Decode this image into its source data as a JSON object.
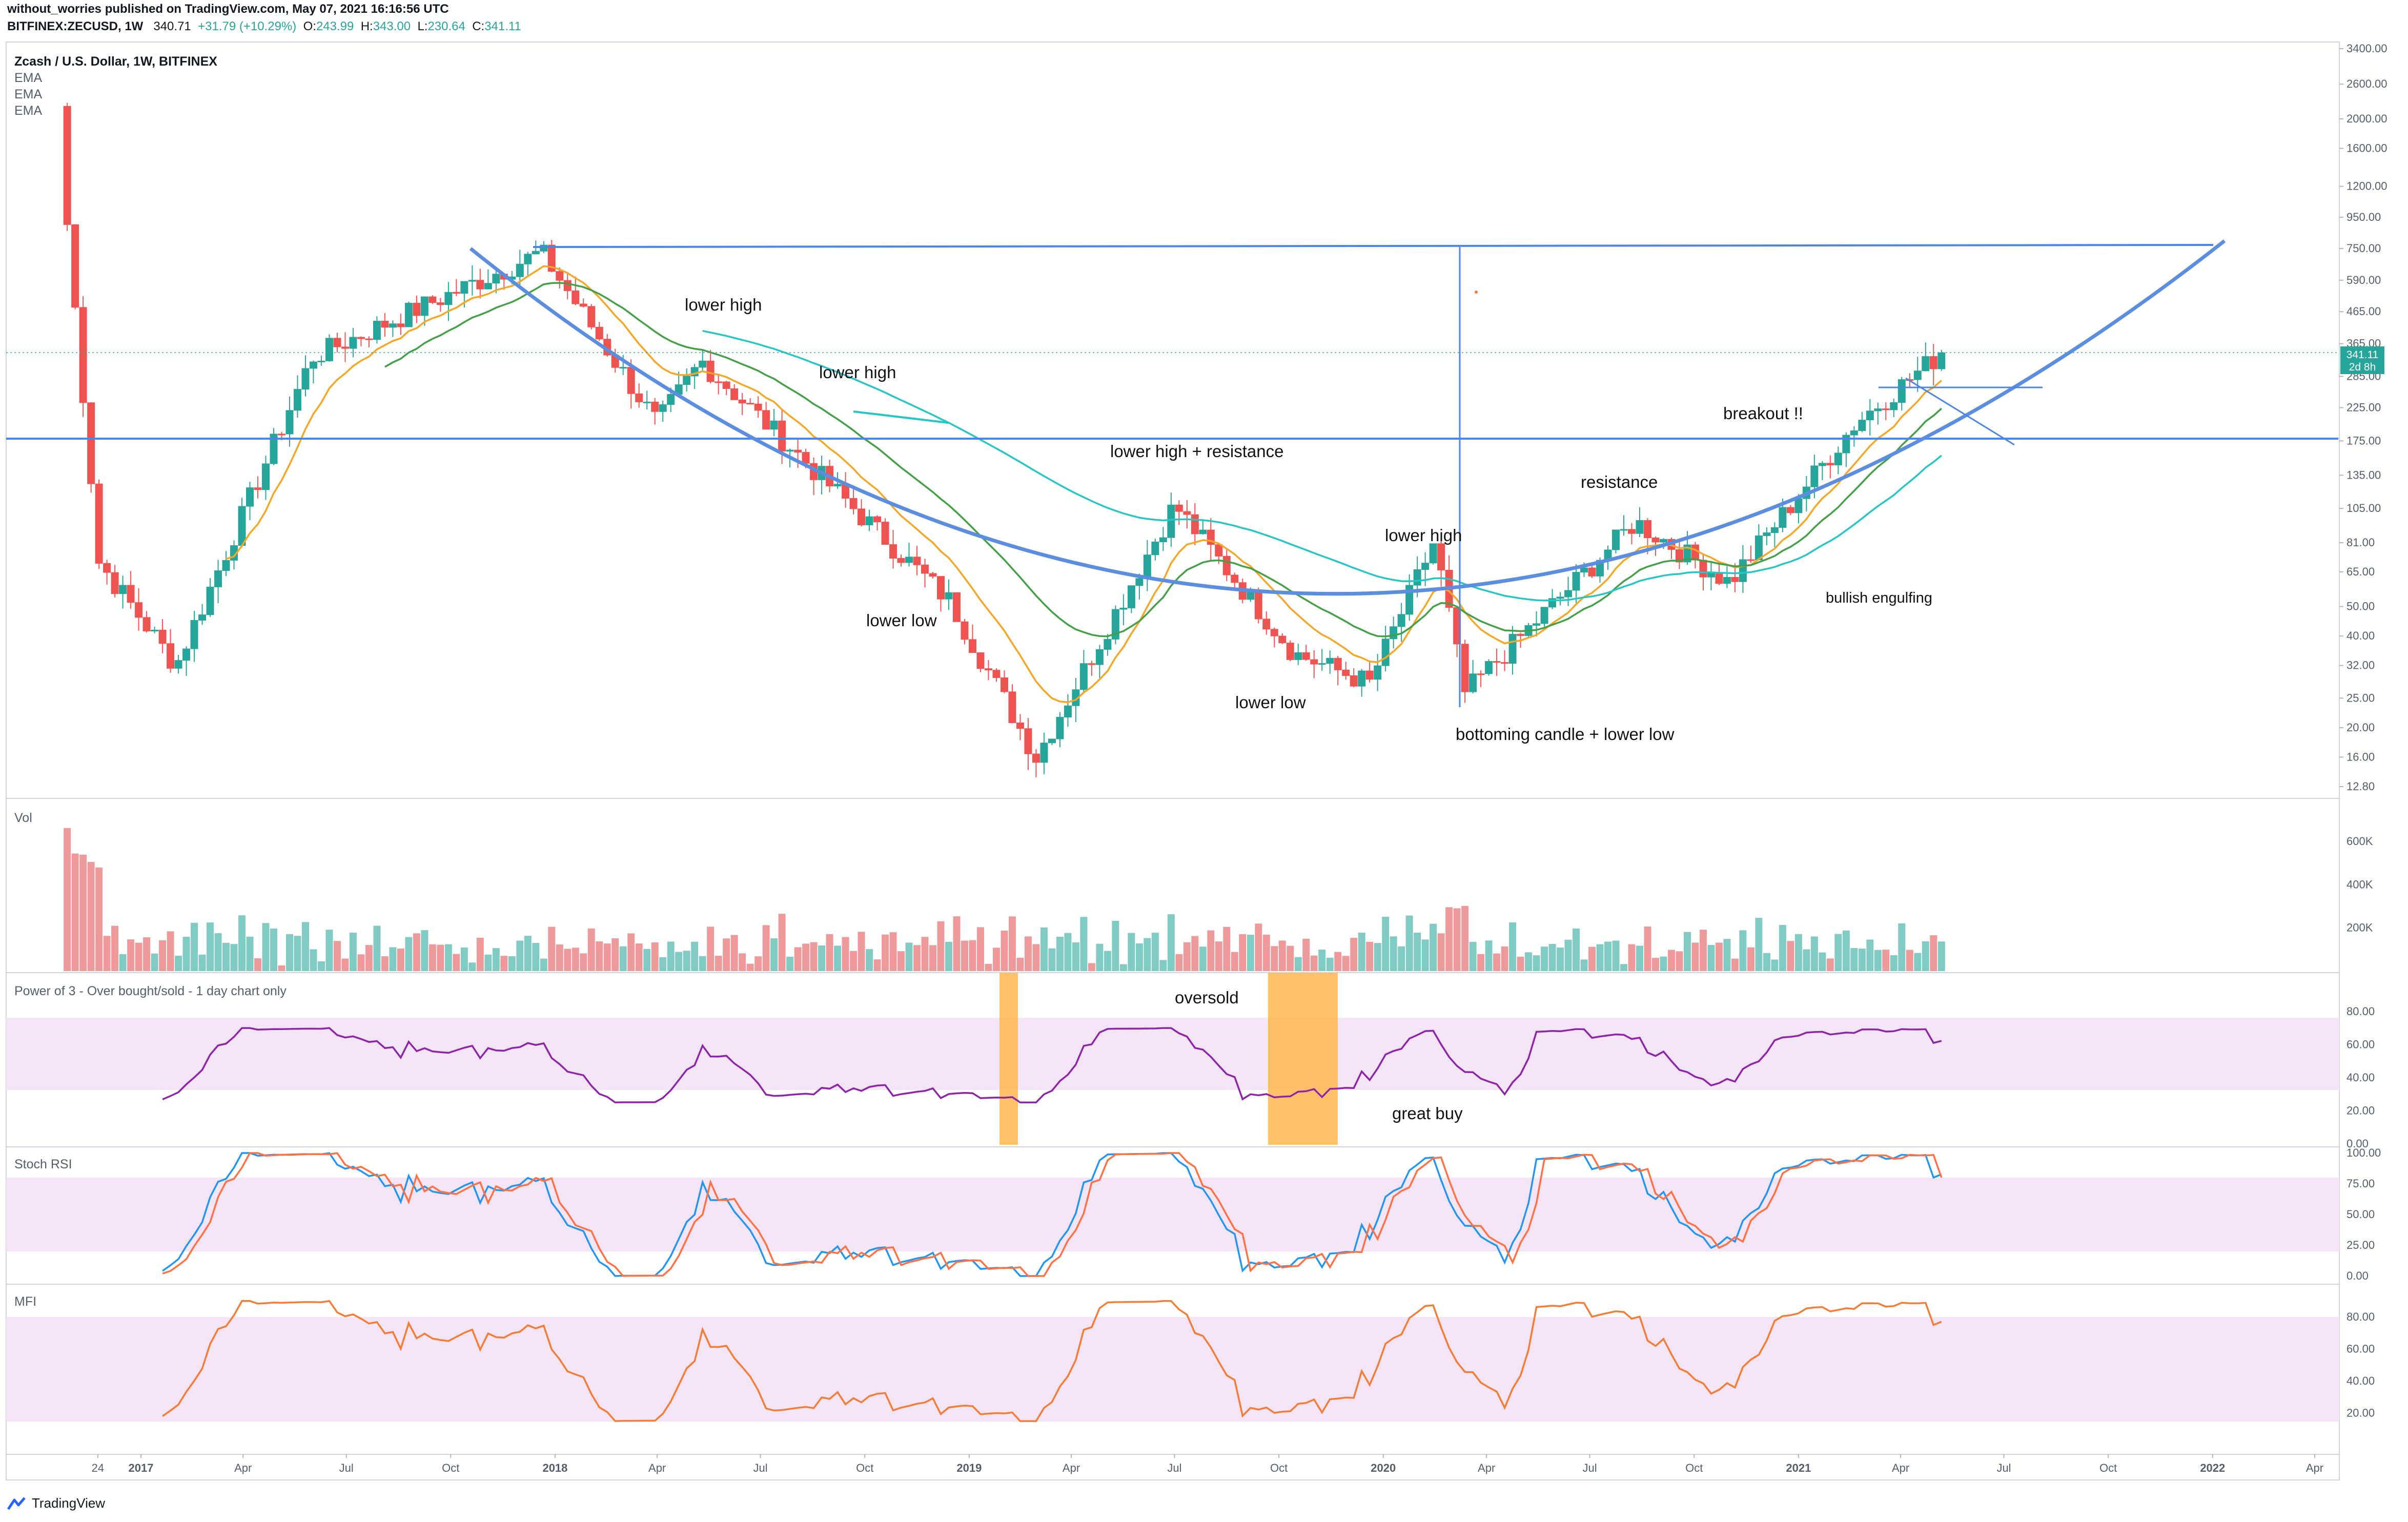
{
  "header": {
    "published_line": "without_worries published on TradingView.com, May 07, 2021 16:16:56 UTC",
    "symbol": "BITFINEX:ZECUSD, 1W",
    "last": "340.71",
    "change": "+31.79 (+10.29%)",
    "o_label": "O:",
    "o_value": "243.99",
    "h_label": "H:",
    "h_value": "343.00",
    "l_label": "L:",
    "l_value": "230.64",
    "c_label": "C:",
    "c_value": "341.11"
  },
  "main_pane": {
    "title": "Zcash / U.S. Dollar, 1W, BITFINEX",
    "studies": [
      "EMA",
      "EMA",
      "EMA"
    ],
    "price_badge": "341.11",
    "countdown_badge": "2d 8h"
  },
  "panes": {
    "volume": "Vol",
    "power3": "Power of 3 - Over bought/sold - 1 day chart only",
    "stoch": "Stoch RSI",
    "mfi": "MFI"
  },
  "annotations": {
    "lower_high_1": "lower high",
    "lower_high_2": "lower high",
    "lower_high_resistance": "lower high + resistance",
    "lower_high_3": "lower high",
    "lower_low_1": "lower low",
    "lower_low_2": "lower low",
    "bottoming": "bottoming candle + lower low",
    "resistance": "resistance",
    "breakout": "breakout !!",
    "bullish_engulfing": "bullish engulfing",
    "oversold": "oversold",
    "great_buy": "great buy"
  },
  "brand": {
    "name": "TradingView"
  },
  "colors": {
    "bull": "#26a69a",
    "bear": "#ef5350",
    "ema_fast": "#f5a623",
    "ema_mid": "#43a047",
    "ema_slow": "#26c6c6",
    "trendline": "#4a86e8",
    "power3": "#8e24aa",
    "stoch_k": "#2196f3",
    "stoch_d": "#ff7043",
    "mfi": "#f57c34",
    "band": "#f3e5f5",
    "oversold_box": "#ffb74d"
  },
  "chart_data": [
    {
      "type": "candlestick",
      "title": "Zcash / U.S. Dollar, 1W, BITFINEX",
      "y_scale": "log",
      "y_ticks": [
        "3400.00",
        "2600.00",
        "2000.00",
        "1600.00",
        "1200.00",
        "950.00",
        "750.00",
        "590.00",
        "465.00",
        "365.00",
        "285.00",
        "225.00",
        "175.00",
        "135.00",
        "105.00",
        "81.00",
        "65.00",
        "50.00",
        "40.00",
        "32.00",
        "25.00",
        "20.00",
        "16.00",
        "12.80"
      ],
      "x_ticks": [
        "24",
        "2017",
        "Apr",
        "Jul",
        "Oct",
        "2018",
        "Apr",
        "Jul",
        "Oct",
        "2019",
        "Apr",
        "Jul",
        "Oct",
        "2020",
        "Apr",
        "Jul",
        "Oct",
        "2021",
        "Apr",
        "Jul",
        "Oct",
        "2022",
        "Apr"
      ],
      "key_prices": [
        {
          "date": "2016-10-28",
          "close": 900
        },
        {
          "date": "2016-11-25",
          "close": 70
        },
        {
          "date": "2017-02-01",
          "close": 32
        },
        {
          "date": "2017-06-01",
          "close": 330
        },
        {
          "date": "2017-12-20",
          "close": 730
        },
        {
          "date": "2018-04-01",
          "close": 200
        },
        {
          "date": "2018-05-10",
          "close": 320
        },
        {
          "date": "2018-12-15",
          "close": 52
        },
        {
          "date": "2019-03-01",
          "close": 16
        },
        {
          "date": "2019-07-01",
          "close": 108
        },
        {
          "date": "2019-10-15",
          "close": 35
        },
        {
          "date": "2019-12-20",
          "close": 28
        },
        {
          "date": "2020-02-15",
          "close": 82
        },
        {
          "date": "2020-03-13",
          "close": 26
        },
        {
          "date": "2020-08-10",
          "close": 95
        },
        {
          "date": "2020-11-01",
          "close": 60
        },
        {
          "date": "2021-02-20",
          "close": 200
        },
        {
          "date": "2021-05-07",
          "close": 341.11
        }
      ],
      "last_close": 341.11,
      "resistance_level": 175,
      "top_level": 750
    },
    {
      "type": "bar",
      "name": "Vol",
      "y_ticks": [
        "600K",
        "400K",
        "200K"
      ]
    },
    {
      "type": "line",
      "name": "Power of 3 - Over bought/sold - 1 day chart only",
      "y_ticks": [
        "80.00",
        "60.00",
        "40.00",
        "20.00",
        "0.00"
      ],
      "band": [
        30,
        70
      ]
    },
    {
      "type": "line",
      "name": "Stoch RSI",
      "y_ticks": [
        "100.00",
        "75.00",
        "50.00",
        "25.00",
        "0.00"
      ],
      "band": [
        20,
        80
      ]
    },
    {
      "type": "line",
      "name": "MFI",
      "y_ticks": [
        "80.00",
        "60.00",
        "40.00",
        "20.00"
      ],
      "band": [
        20,
        80
      ]
    }
  ]
}
